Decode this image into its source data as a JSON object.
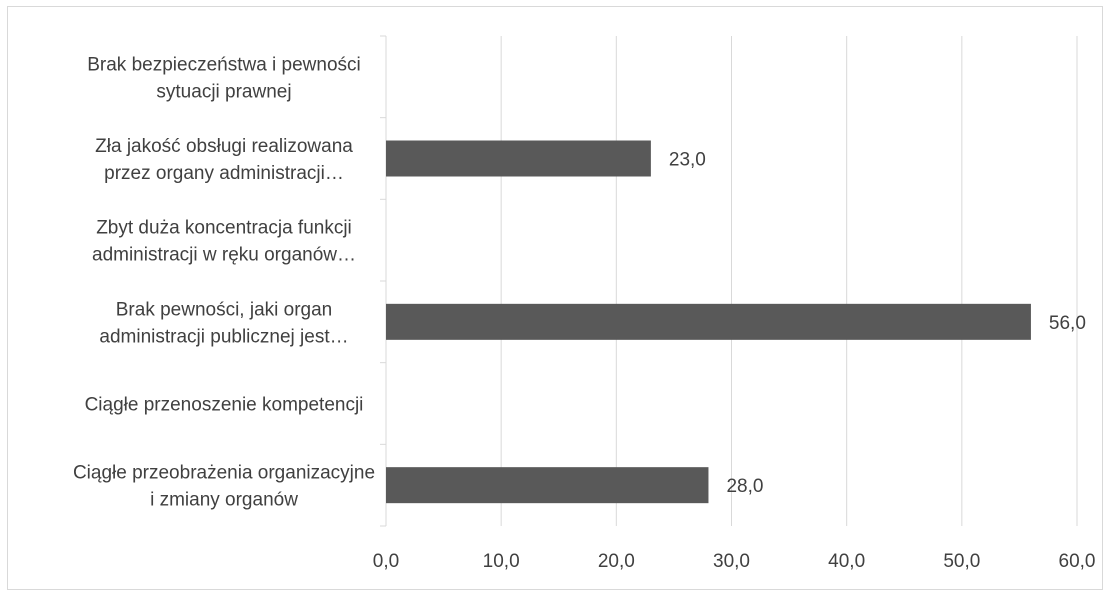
{
  "chart_data": {
    "type": "bar",
    "orientation": "horizontal",
    "title": "",
    "xlabel": "",
    "ylabel": "",
    "xlim": [
      0,
      60
    ],
    "x_ticks": [
      0,
      10,
      20,
      30,
      40,
      50,
      60
    ],
    "x_tick_labels": [
      "0,0",
      "10,0",
      "20,0",
      "30,0",
      "40,0",
      "50,0",
      "60,0"
    ],
    "grid": "vertical",
    "legend": "none",
    "bar_color": "#595959",
    "categories": [
      [
        "Brak bezpieczeństwa i pewności",
        "sytuacji prawnej"
      ],
      [
        "Zła jakość obsługi realizowana",
        "przez organy administracji…"
      ],
      [
        "Zbyt duża koncentracja funkcji",
        "administracji w ręku organów…"
      ],
      [
        "Brak pewności, jaki organ",
        "administracji publicznej jest…"
      ],
      [
        "Ciągłe przenoszenie kompetencji"
      ],
      [
        "Ciągłe przeobrażenia organizacyjne",
        "i zmiany organów"
      ]
    ],
    "values": [
      null,
      23.0,
      null,
      56.0,
      null,
      28.0
    ],
    "data_labels": [
      "",
      "23,0",
      "",
      "56,0",
      "",
      "28,0"
    ]
  }
}
